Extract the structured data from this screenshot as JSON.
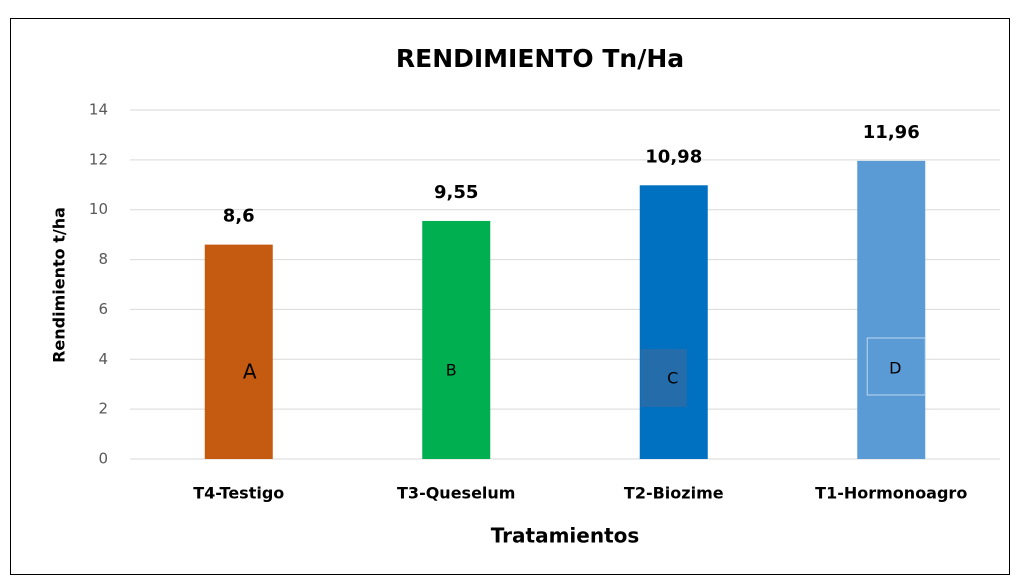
{
  "chart_data": {
    "type": "bar",
    "title": "RENDIMIENTO Tn/Ha",
    "categories": [
      "T4-Testigo",
      "T3-Queselum",
      "T2-Biozime",
      "T1-Hormonoagro"
    ],
    "values": [
      8.6,
      9.55,
      10.98,
      11.96
    ],
    "value_labels": [
      "8,6",
      "9,55",
      "10,98",
      "11,96"
    ],
    "colors": [
      "#c55a11",
      "#00b050",
      "#0070c0",
      "#5b9bd5"
    ],
    "annotations": [
      "A",
      "B",
      "C",
      "D"
    ],
    "xlabel": "Tratamientos",
    "ylabel": "Rendimiento t/ha",
    "ylim": [
      0,
      14
    ],
    "yticks": [
      0,
      2,
      4,
      6,
      8,
      10,
      12,
      14
    ],
    "grid": true
  }
}
